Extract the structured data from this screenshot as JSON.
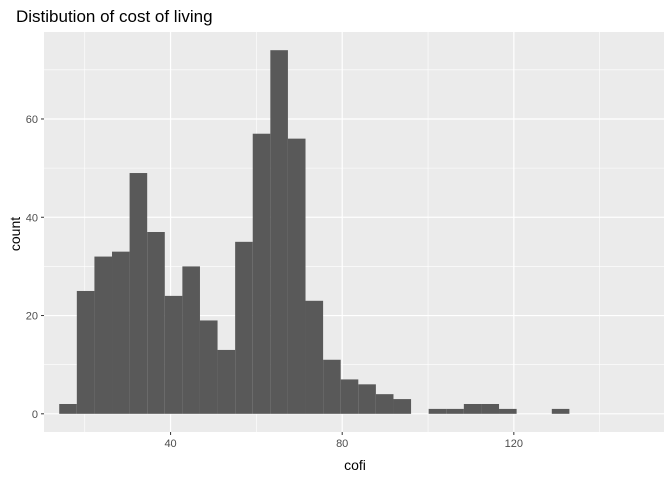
{
  "chart_data": {
    "type": "bar",
    "title": "Distibution of cost of living",
    "xlabel": "cofi",
    "ylabel": "count",
    "xlim": [
      10.5,
      155
    ],
    "ylim": [
      -3.7,
      77.7
    ],
    "x_ticks": [
      40,
      80,
      120
    ],
    "x_minor": [
      20,
      60,
      100,
      140
    ],
    "y_ticks": [
      0,
      20,
      40,
      60
    ],
    "y_minor": [
      10,
      30,
      50,
      70
    ],
    "grid": true,
    "bin_width": 4.1,
    "bins": [
      {
        "x": 16.1,
        "count": 2
      },
      {
        "x": 20.2,
        "count": 25
      },
      {
        "x": 24.3,
        "count": 32
      },
      {
        "x": 28.4,
        "count": 33
      },
      {
        "x": 32.5,
        "count": 49
      },
      {
        "x": 36.6,
        "count": 37
      },
      {
        "x": 40.7,
        "count": 24
      },
      {
        "x": 44.8,
        "count": 30
      },
      {
        "x": 48.9,
        "count": 19
      },
      {
        "x": 53.0,
        "count": 13
      },
      {
        "x": 57.1,
        "count": 35
      },
      {
        "x": 61.2,
        "count": 57
      },
      {
        "x": 65.3,
        "count": 74
      },
      {
        "x": 69.4,
        "count": 56
      },
      {
        "x": 73.5,
        "count": 23
      },
      {
        "x": 77.6,
        "count": 11
      },
      {
        "x": 81.7,
        "count": 7
      },
      {
        "x": 85.8,
        "count": 6
      },
      {
        "x": 89.9,
        "count": 4
      },
      {
        "x": 94.0,
        "count": 3
      },
      {
        "x": 98.1,
        "count": 0
      },
      {
        "x": 102.2,
        "count": 1
      },
      {
        "x": 106.3,
        "count": 1
      },
      {
        "x": 110.4,
        "count": 2
      },
      {
        "x": 114.5,
        "count": 2
      },
      {
        "x": 118.6,
        "count": 1
      },
      {
        "x": 122.7,
        "count": 0
      },
      {
        "x": 126.8,
        "count": 0
      },
      {
        "x": 130.9,
        "count": 1
      }
    ],
    "colors": {
      "panel": "#ebebeb",
      "grid": "#ffffff",
      "bar": "#595959",
      "tick": "#333333"
    }
  }
}
